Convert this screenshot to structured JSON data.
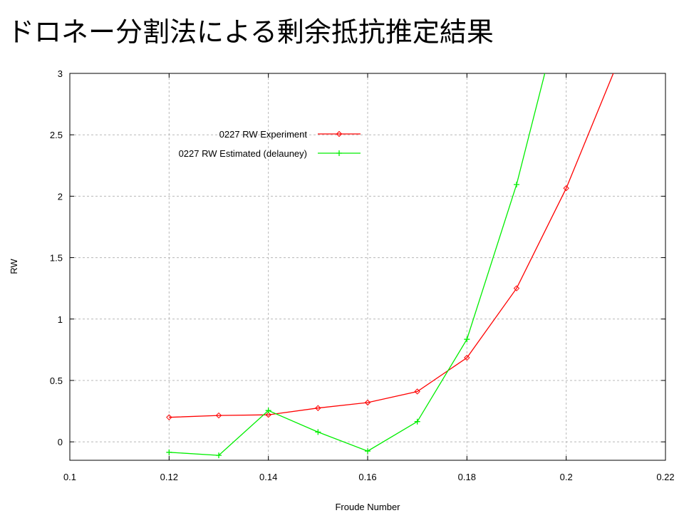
{
  "page": {
    "title": "ドロネー分割法による剰余抵抗推定結果"
  },
  "chart_data": {
    "type": "line",
    "title": "",
    "xlabel": "Froude Number",
    "ylabel": "RW",
    "xlim": [
      0.1,
      0.22
    ],
    "ylim": [
      -0.15,
      3
    ],
    "xticks": [
      "0.1",
      "0.12",
      "0.14",
      "0.16",
      "0.18",
      "0.2",
      "0.22"
    ],
    "yticks": [
      "0",
      "0.5",
      "1",
      "1.5",
      "2",
      "2.5",
      "3"
    ],
    "grid": true,
    "legend_position": "top-left",
    "series": [
      {
        "name": "0227 RW Experiment",
        "color": "#ff0000",
        "marker": "diamond",
        "x": [
          0.12,
          0.13,
          0.14,
          0.15,
          0.16,
          0.17,
          0.18,
          0.19,
          0.2,
          0.21
        ],
        "y": [
          0.2,
          0.215,
          0.22,
          0.275,
          0.32,
          0.41,
          0.685,
          1.25,
          2.065,
          3.05
        ],
        "markers_shown": 9
      },
      {
        "name": "0227 RW Estimated (delauney)",
        "color": "#00ee00",
        "marker": "plus",
        "x": [
          0.12,
          0.13,
          0.14,
          0.15,
          0.16,
          0.17,
          0.18,
          0.19,
          0.196
        ],
        "y": [
          -0.085,
          -0.11,
          0.255,
          0.08,
          -0.075,
          0.165,
          0.835,
          2.095,
          3.05
        ],
        "markers_shown": 8
      }
    ]
  }
}
